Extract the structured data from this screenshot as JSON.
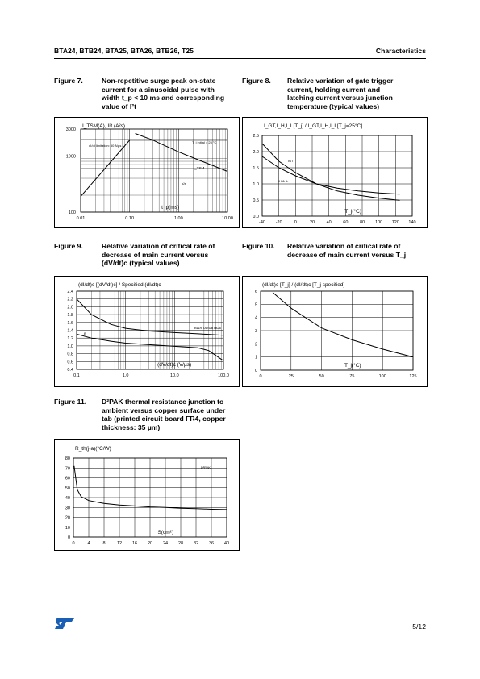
{
  "header": {
    "left": "BTA24, BTB24, BTA25, BTA26, BTB26, T25",
    "right": "Characteristics"
  },
  "figures": [
    {
      "number": "Figure 7.",
      "title_lines": [
        "Non-repetitive surge peak on-state",
        "current for a sinusoidal pulse with",
        "width t_p < 10 ms and corresponding",
        "value of I²t"
      ]
    },
    {
      "number": "Figure 8.",
      "title_lines": [
        "Relative variation of gate trigger",
        "current, holding current and",
        "latching current versus junction",
        "temperature (typical values)"
      ]
    },
    {
      "number": "Figure 9.",
      "title_lines": [
        "Relative variation of critical rate of",
        "decrease of main current versus",
        "(dV/dt)c (typical values)"
      ]
    },
    {
      "number": "Figure 10.",
      "title_lines": [
        "Relative variation of critical rate of",
        "decrease of main current versus T_j"
      ]
    },
    {
      "number": "Figure 11.",
      "title_lines": [
        "D²PAK thermal resistance junction to",
        "ambient versus copper surface under",
        "tab (printed circuit board FR4, copper",
        "thickness: 35 µm)"
      ]
    }
  ],
  "chart_data": [
    {
      "type": "line",
      "id": "fig7",
      "xscale": "log",
      "yscale": "log",
      "xlim": [
        0.01,
        10
      ],
      "ylim": [
        100,
        3000
      ],
      "ylabel": "I_TSM(A), I²t (A²s)",
      "xlabel": "t_p(ms)",
      "x_ticks": [
        "0.01",
        "0.10",
        "1.00",
        "10.00"
      ],
      "y_ticks": [
        "100",
        "1000",
        "3000"
      ],
      "annotations": [
        "dI/dt limitation: 50 A/µs",
        "T_j initial = 25 °C",
        "I_TSM",
        "I²t"
      ],
      "series": [
        {
          "name": "I²t",
          "x": [
            0.01,
            0.1,
            0.3,
            1,
            3,
            10
          ],
          "y": [
            190,
            1900,
            1900,
            1900,
            1900,
            1900
          ]
        },
        {
          "name": "I_TSM",
          "x": [
            0.13,
            0.3,
            1,
            3,
            10
          ],
          "y": [
            2500,
            1900,
            1180,
            800,
            530
          ]
        }
      ]
    },
    {
      "type": "line",
      "id": "fig8",
      "xlim": [
        -40,
        140
      ],
      "ylim": [
        0,
        2.5
      ],
      "ylabel": "I_GT,I_H,I_L[T_j] / I_GT,I_H,I_L[T_j=25°C]",
      "xlabel": "T_j(°C)",
      "x_ticks": [
        "-40",
        "-20",
        "0",
        "20",
        "40",
        "60",
        "80",
        "100",
        "120",
        "140"
      ],
      "y_ticks": [
        "0.0",
        "0.5",
        "1.0",
        "1.5",
        "2.0",
        "2.5"
      ],
      "series": [
        {
          "name": "IGT",
          "x": [
            -40,
            -20,
            0,
            25,
            50,
            75,
            100,
            125
          ],
          "y": [
            2.25,
            1.7,
            1.35,
            1.0,
            0.78,
            0.65,
            0.56,
            0.49
          ]
        },
        {
          "name": "IH & IL",
          "x": [
            -40,
            -20,
            0,
            25,
            50,
            75,
            100,
            125
          ],
          "y": [
            1.85,
            1.5,
            1.25,
            1.0,
            0.87,
            0.78,
            0.72,
            0.68
          ]
        }
      ]
    },
    {
      "type": "line",
      "id": "fig9",
      "xscale": "log",
      "xlim": [
        0.1,
        100
      ],
      "ylim": [
        0.4,
        2.4
      ],
      "ylabel": "(dI/dt)c [(dV/dt)c] / Specified (dI/dt)c",
      "xlabel": "(dV/dt)c (V/µs)",
      "x_ticks": [
        "0.1",
        "1.0",
        "10.0",
        "100.0"
      ],
      "y_ticks": [
        "0.4",
        "0.6",
        "0.8",
        "1.0",
        "1.2",
        "1.4",
        "1.6",
        "1.8",
        "2.0",
        "2.2",
        "2.4"
      ],
      "annotations": [
        "BW/BTA26/BTB26",
        "B"
      ],
      "series": [
        {
          "name": "BW/BTA26/BTB26",
          "x": [
            0.1,
            0.2,
            0.5,
            1,
            3,
            10,
            30,
            100
          ],
          "y": [
            2.2,
            1.8,
            1.55,
            1.45,
            1.38,
            1.34,
            1.31,
            1.27
          ]
        },
        {
          "name": "B",
          "x": [
            0.1,
            0.2,
            0.5,
            1,
            3,
            10,
            30,
            50,
            100
          ],
          "y": [
            1.3,
            1.2,
            1.12,
            1.07,
            1.03,
            0.99,
            0.95,
            0.88,
            0.62
          ]
        }
      ]
    },
    {
      "type": "line",
      "id": "fig10",
      "xlim": [
        0,
        125
      ],
      "ylim": [
        0,
        6
      ],
      "ylabel": "(dI/dt)c [T_j] / (dI/dt)c [T_j specified]",
      "xlabel": "T_j(°C)",
      "x_ticks": [
        "0",
        "25",
        "50",
        "75",
        "100",
        "125"
      ],
      "y_ticks": [
        "0",
        "1",
        "2",
        "3",
        "4",
        "5",
        "6"
      ],
      "series": [
        {
          "name": "",
          "x": [
            10,
            25,
            50,
            75,
            100,
            125
          ],
          "y": [
            5.9,
            4.7,
            3.2,
            2.3,
            1.6,
            1.0
          ]
        }
      ]
    },
    {
      "type": "line",
      "id": "fig11",
      "xlim": [
        0,
        40
      ],
      "ylim": [
        0,
        80
      ],
      "ylabel": "R_th(j-a)(°C/W)",
      "xlabel": "S(cm²)",
      "x_ticks": [
        "0",
        "4",
        "8",
        "12",
        "16",
        "20",
        "24",
        "28",
        "32",
        "36",
        "40"
      ],
      "y_ticks": [
        "0",
        "10",
        "20",
        "30",
        "40",
        "50",
        "60",
        "70",
        "80"
      ],
      "annotations": [
        "D²PAK"
      ],
      "series": [
        {
          "name": "D²PAK",
          "x": [
            0.2,
            1,
            2,
            4,
            8,
            12,
            16,
            20,
            24,
            28,
            32,
            36,
            40
          ],
          "y": [
            72,
            48,
            41,
            37,
            34,
            32.5,
            31.5,
            30.5,
            30,
            29.2,
            28.8,
            28.2,
            27.8
          ]
        }
      ]
    }
  ],
  "footer": {
    "logo": "ST",
    "page": "5/12"
  }
}
